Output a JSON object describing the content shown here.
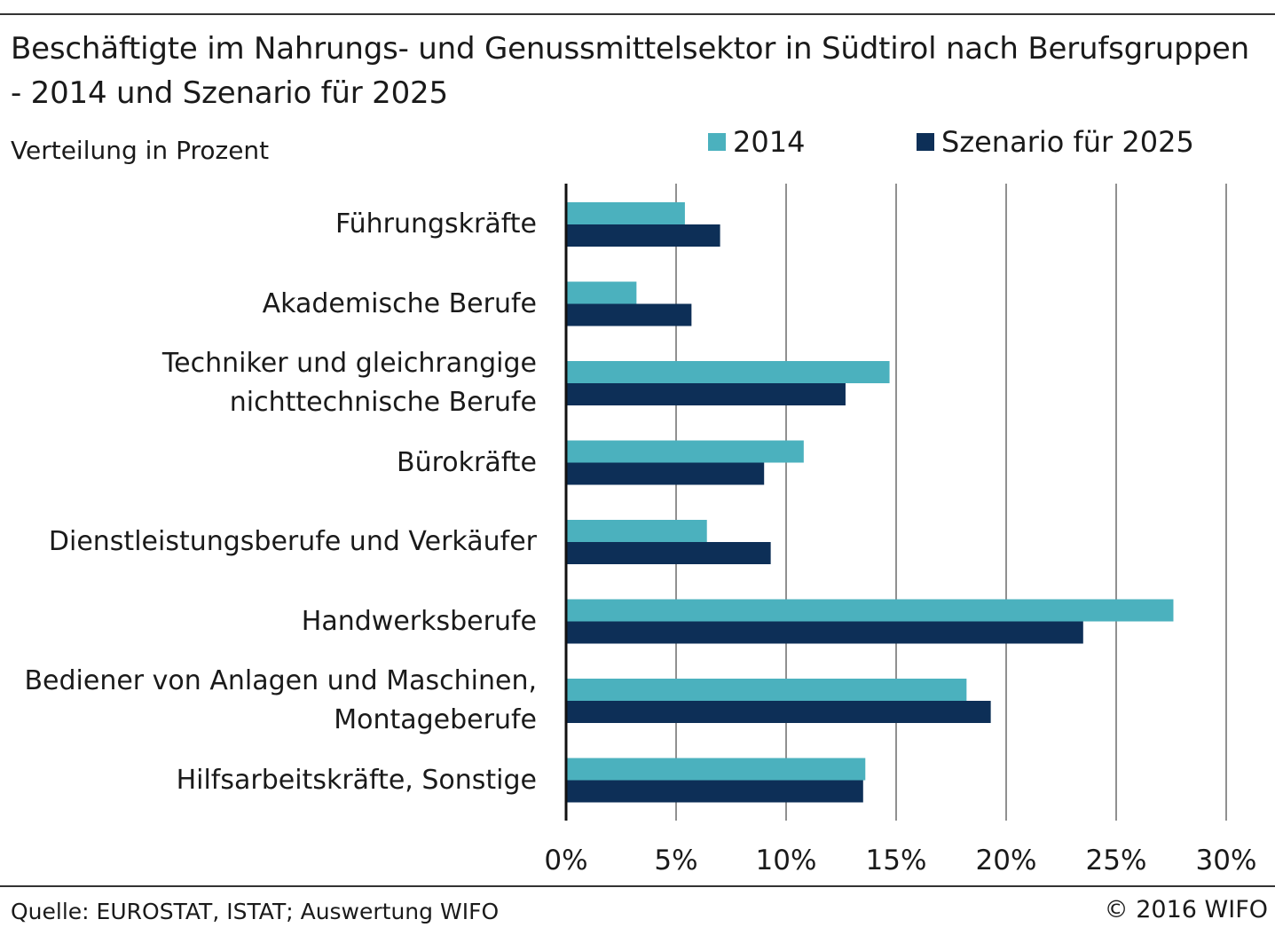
{
  "header": {
    "title": "Beschäftigte im Nahrungs- und Genussmittelsektor in Südtirol nach Berufsgruppen - 2014 und Szenario für 2025",
    "subtitle": "Verteilung in Prozent"
  },
  "legend": [
    {
      "name": "2014",
      "color": "#4bb1be"
    },
    {
      "name": "Szenario für 2025",
      "color": "#0d2f57"
    }
  ],
  "chart_data": {
    "type": "bar",
    "orientation": "horizontal",
    "categories": [
      "Führungskräfte",
      "Akademische Berufe",
      "Techniker und gleichrangige nichttechnische Berufe",
      "Bürokräfte",
      "Dienstleistungsberufe und Verkäufer",
      "Handwerksberufe",
      "Bediener von Anlagen und Maschinen, Montageberufe",
      "Hilfsarbeitskräfte, Sonstige"
    ],
    "category_lines": [
      [
        "Führungskräfte"
      ],
      [
        "Akademische Berufe"
      ],
      [
        "Techniker und gleichrangige",
        "nichttechnische Berufe"
      ],
      [
        "Bürokräfte"
      ],
      [
        "Dienstleistungsberufe und Verkäufer"
      ],
      [
        "Handwerksberufe"
      ],
      [
        "Bediener von Anlagen und Maschinen,",
        "Montageberufe"
      ],
      [
        "Hilfsarbeitskräfte, Sonstige"
      ]
    ],
    "series": [
      {
        "name": "2014",
        "color": "#4bb1be",
        "values": [
          5.4,
          3.2,
          14.7,
          10.8,
          6.4,
          27.6,
          18.2,
          13.6
        ]
      },
      {
        "name": "Szenario für 2025",
        "color": "#0d2f57",
        "values": [
          7.0,
          5.7,
          12.7,
          9.0,
          9.3,
          23.5,
          19.3,
          13.5
        ]
      }
    ],
    "xlim": [
      0,
      30
    ],
    "x_ticks": [
      0,
      5,
      10,
      15,
      20,
      25,
      30
    ],
    "x_tick_labels": [
      "0%",
      "5%",
      "10%",
      "15%",
      "20%",
      "25%",
      "30%"
    ],
    "grid": "vertical",
    "legend_position": "top-right"
  },
  "footer": {
    "source": "Quelle: EUROSTAT, ISTAT; Auswertung WIFO",
    "copyright": "© 2016 WIFO"
  }
}
